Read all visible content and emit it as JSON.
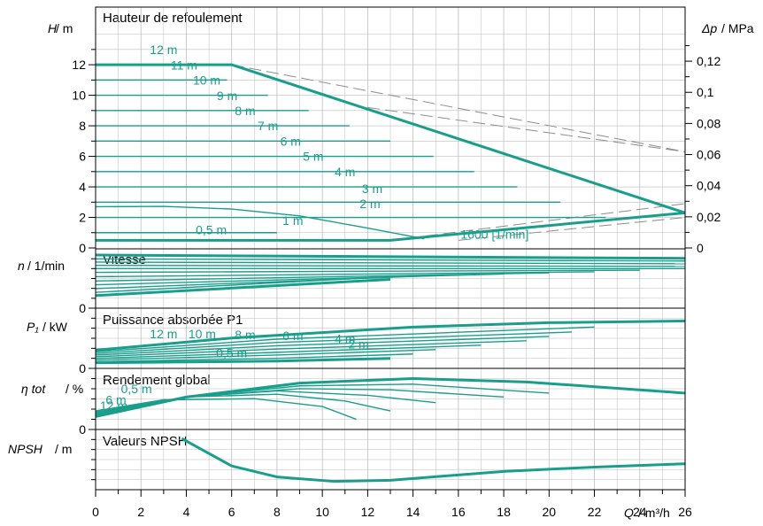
{
  "colors": {
    "curve": "#1a9e8c",
    "grid": "#bdbdbd",
    "frame": "#000000",
    "ref": "#8c8c8c",
    "text": "#000000"
  },
  "chart_data": {
    "type": "line",
    "x_axis": {
      "label_var": "Q",
      "label_unit": "/ m³/h",
      "range": [
        0,
        26
      ],
      "ticks": [
        0,
        2,
        4,
        6,
        8,
        10,
        12,
        14,
        16,
        18,
        20,
        22,
        24,
        26
      ]
    },
    "panels": [
      {
        "id": "head",
        "title": "Hauteur de refoulement",
        "ylabel_var": "H",
        "ylabel_unit": "/ m",
        "ylim": [
          0,
          14.5
        ],
        "yticks": [
          0,
          2,
          4,
          6,
          8,
          10,
          12
        ],
        "y2label_var": "Δp",
        "y2label_unit": "/ MPa",
        "y2ticks": [
          "0",
          "0,02",
          "0,04",
          "0,06",
          "0,08",
          "0,1",
          "0,12"
        ],
        "setpoint_labels": [
          {
            "text": "12 m",
            "x": 3.0,
            "y": 12.7
          },
          {
            "text": "11 m",
            "x": 3.9,
            "y": 11.7
          },
          {
            "text": "10 m",
            "x": 4.9,
            "y": 10.7
          },
          {
            "text": "9 m",
            "x": 5.8,
            "y": 9.7
          },
          {
            "text": "8 m",
            "x": 6.6,
            "y": 8.7
          },
          {
            "text": "7 m",
            "x": 7.6,
            "y": 7.7
          },
          {
            "text": "6 m",
            "x": 8.6,
            "y": 6.7
          },
          {
            "text": "5 m",
            "x": 9.6,
            "y": 5.7
          },
          {
            "text": "4 m",
            "x": 11.0,
            "y": 4.7
          },
          {
            "text": "3 m",
            "x": 12.2,
            "y": 3.6
          },
          {
            "text": "2 m",
            "x": 12.1,
            "y": 2.6
          },
          {
            "text": "1 m",
            "x": 8.7,
            "y": 1.5
          },
          {
            "text": "0,5 m",
            "x": 5.1,
            "y": 0.9
          },
          {
            "text": "1600 [1/min]",
            "x": 17.6,
            "y": 0.6
          }
        ],
        "series": [
          {
            "values": [
              [
                0,
                0.5
              ],
              [
                13,
                0.5
              ],
              [
                26,
                2.3
              ]
            ],
            "bold": true
          },
          {
            "values": [
              [
                0,
                1.0
              ],
              [
                8.0,
                1.0
              ]
            ]
          },
          {
            "values": [
              [
                0,
                2.0
              ],
              [
                22.5,
                2.0
              ]
            ]
          },
          {
            "values": [
              [
                0,
                3.0
              ],
              [
                20.5,
                3.0
              ]
            ]
          },
          {
            "values": [
              [
                0,
                4.0
              ],
              [
                18.6,
                4.0
              ]
            ]
          },
          {
            "values": [
              [
                0,
                5.0
              ],
              [
                16.7,
                5.0
              ]
            ]
          },
          {
            "values": [
              [
                0,
                6.0
              ],
              [
                14.9,
                6.0
              ]
            ]
          },
          {
            "values": [
              [
                0,
                7.0
              ],
              [
                13.0,
                7.0
              ]
            ]
          },
          {
            "values": [
              [
                0,
                8.0
              ],
              [
                11.2,
                8.0
              ]
            ]
          },
          {
            "values": [
              [
                0,
                9.0
              ],
              [
                9.4,
                9.0
              ]
            ]
          },
          {
            "values": [
              [
                0,
                10.0
              ],
              [
                7.6,
                10.0
              ]
            ]
          },
          {
            "values": [
              [
                0,
                11.0
              ],
              [
                5.8,
                11.0
              ]
            ]
          },
          {
            "values": [
              [
                0,
                12.0
              ],
              [
                6.0,
                12.0
              ],
              [
                26,
                2.3
              ]
            ],
            "bold": true
          },
          {
            "values": [
              [
                0,
                2.7
              ],
              [
                3,
                2.72
              ],
              [
                6,
                2.55
              ],
              [
                9,
                2.1
              ],
              [
                12,
                1.3
              ],
              [
                14.5,
                0.6
              ]
            ]
          }
        ],
        "reference": [
          {
            "values": [
              [
                6.0,
                12.0
              ],
              [
                26,
                6.3
              ]
            ]
          },
          {
            "values": [
              [
                12.0,
                9.2
              ],
              [
                26,
                6.3
              ]
            ]
          },
          {
            "values": [
              [
                13,
                0.5
              ],
              [
                26,
                2.9
              ]
            ]
          },
          {
            "values": [
              [
                16,
                0.5
              ],
              [
                26,
                2.0
              ]
            ]
          }
        ]
      },
      {
        "id": "speed",
        "title": "Vitesse",
        "ylabel_var": "n",
        "ylabel_unit": "/ 1/min",
        "ylim": [
          0,
          1
        ],
        "yticks": [
          0
        ],
        "series": [
          {
            "values": [
              [
                0,
                0.95
              ],
              [
                26,
                0.89
              ]
            ],
            "bold": true
          },
          {
            "values": [
              [
                0,
                0.88
              ],
              [
                26,
                0.84
              ]
            ]
          },
          {
            "values": [
              [
                0,
                0.82
              ],
              [
                26,
                0.79
              ]
            ]
          },
          {
            "values": [
              [
                0,
                0.76
              ],
              [
                26,
                0.74
              ]
            ]
          },
          {
            "values": [
              [
                0,
                0.7
              ],
              [
                26,
                0.7
              ]
            ]
          },
          {
            "values": [
              [
                0,
                0.63
              ],
              [
                24,
                0.67
              ]
            ]
          },
          {
            "values": [
              [
                0,
                0.55
              ],
              [
                22,
                0.64
              ]
            ]
          },
          {
            "values": [
              [
                0,
                0.47
              ],
              [
                20,
                0.62
              ]
            ]
          },
          {
            "values": [
              [
                0,
                0.4
              ],
              [
                18,
                0.6
              ]
            ]
          },
          {
            "values": [
              [
                0,
                0.33
              ],
              [
                15,
                0.57
              ]
            ]
          },
          {
            "values": [
              [
                0,
                0.26
              ],
              [
                13,
                0.55
              ]
            ]
          },
          {
            "values": [
              [
                0,
                0.2
              ],
              [
                13,
                0.5
              ]
            ],
            "bold": true
          }
        ]
      },
      {
        "id": "power",
        "title": "Puissance absorbée P1",
        "ylabel_var": "P₁",
        "ylabel_unit": "/ kW",
        "ylim": [
          0,
          1
        ],
        "yticks": [
          0
        ],
        "setpoint_labels": [
          {
            "text": "12 m",
            "x": 3.0,
            "y": 0.52
          },
          {
            "text": "10 m",
            "x": 4.7,
            "y": 0.52
          },
          {
            "text": "8 m",
            "x": 6.6,
            "y": 0.5
          },
          {
            "text": "6 m",
            "x": 8.7,
            "y": 0.48
          },
          {
            "text": "4 m",
            "x": 11.0,
            "y": 0.43
          },
          {
            "text": "2 m",
            "x": 11.6,
            "y": 0.33
          },
          {
            "text": "0,5 m",
            "x": 6.0,
            "y": 0.17
          }
        ],
        "series": [
          {
            "values": [
              [
                0,
                0.3
              ],
              [
                6,
                0.52
              ],
              [
                14,
                0.72
              ],
              [
                20,
                0.8
              ],
              [
                26,
                0.83
              ]
            ],
            "bold": true
          },
          {
            "values": [
              [
                0,
                0.27
              ],
              [
                8,
                0.5
              ],
              [
                22,
                0.72
              ]
            ]
          },
          {
            "values": [
              [
                0,
                0.24
              ],
              [
                8,
                0.44
              ],
              [
                21,
                0.63
              ]
            ]
          },
          {
            "values": [
              [
                0,
                0.21
              ],
              [
                8,
                0.38
              ],
              [
                20,
                0.55
              ]
            ]
          },
          {
            "values": [
              [
                0,
                0.18
              ],
              [
                8,
                0.32
              ],
              [
                19,
                0.47
              ]
            ]
          },
          {
            "values": [
              [
                0,
                0.15
              ],
              [
                8,
                0.26
              ],
              [
                17,
                0.39
              ]
            ]
          },
          {
            "values": [
              [
                0,
                0.12
              ],
              [
                8,
                0.21
              ],
              [
                15,
                0.31
              ]
            ]
          },
          {
            "values": [
              [
                0,
                0.09
              ],
              [
                8,
                0.15
              ],
              [
                14,
                0.23
              ]
            ]
          },
          {
            "values": [
              [
                0,
                0.07
              ],
              [
                8,
                0.1
              ],
              [
                13,
                0.15
              ]
            ],
            "bold": true
          }
        ]
      },
      {
        "id": "efficiency",
        "title": "Rendement global",
        "ylabel_var": "η tot",
        "ylabel_unit": "/ %",
        "ylim": [
          0,
          1
        ],
        "yticks": [
          0
        ],
        "setpoint_labels": [
          {
            "text": "0,5 m",
            "x": 1.8,
            "y": 0.62
          },
          {
            "text": "6 m",
            "x": 0.9,
            "y": 0.42
          },
          {
            "text": "12 m",
            "x": 0.8,
            "y": 0.32
          }
        ],
        "series": [
          {
            "values": [
              [
                0,
                0.2
              ],
              [
                4,
                0.55
              ],
              [
                9,
                0.8
              ],
              [
                14,
                0.88
              ],
              [
                19,
                0.82
              ],
              [
                26,
                0.62
              ]
            ],
            "bold": true
          },
          {
            "values": [
              [
                0,
                0.22
              ],
              [
                4,
                0.55
              ],
              [
                9,
                0.75
              ],
              [
                14,
                0.78
              ],
              [
                20,
                0.62
              ]
            ]
          },
          {
            "values": [
              [
                0,
                0.24
              ],
              [
                4,
                0.55
              ],
              [
                9,
                0.7
              ],
              [
                13,
                0.68
              ],
              [
                18,
                0.55
              ]
            ]
          },
          {
            "values": [
              [
                0,
                0.26
              ],
              [
                4,
                0.55
              ],
              [
                8,
                0.66
              ],
              [
                12,
                0.58
              ],
              [
                15,
                0.45
              ]
            ]
          },
          {
            "values": [
              [
                0,
                0.28
              ],
              [
                4,
                0.55
              ],
              [
                8,
                0.6
              ],
              [
                11,
                0.48
              ],
              [
                13,
                0.3
              ]
            ]
          },
          {
            "values": [
              [
                0,
                0.3
              ],
              [
                3,
                0.5
              ],
              [
                7,
                0.52
              ],
              [
                10,
                0.38
              ],
              [
                11.5,
                0.15
              ]
            ]
          }
        ]
      },
      {
        "id": "npsh",
        "title": "Valeurs NPSH",
        "ylabel_var": "NPSH",
        "ylabel_unit": "/ m",
        "ylim": [
          0,
          1
        ],
        "yticks": [],
        "series": [
          {
            "values": [
              [
                3.8,
                0.9
              ],
              [
                6,
                0.4
              ]
            ],
            "bold": true
          },
          {
            "values": [
              [
                6,
                0.4
              ],
              [
                8,
                0.2
              ],
              [
                10.5,
                0.12
              ],
              [
                13,
                0.14
              ],
              [
                18,
                0.3
              ],
              [
                22,
                0.38
              ],
              [
                26,
                0.44
              ]
            ],
            "bold": true
          }
        ]
      }
    ]
  }
}
